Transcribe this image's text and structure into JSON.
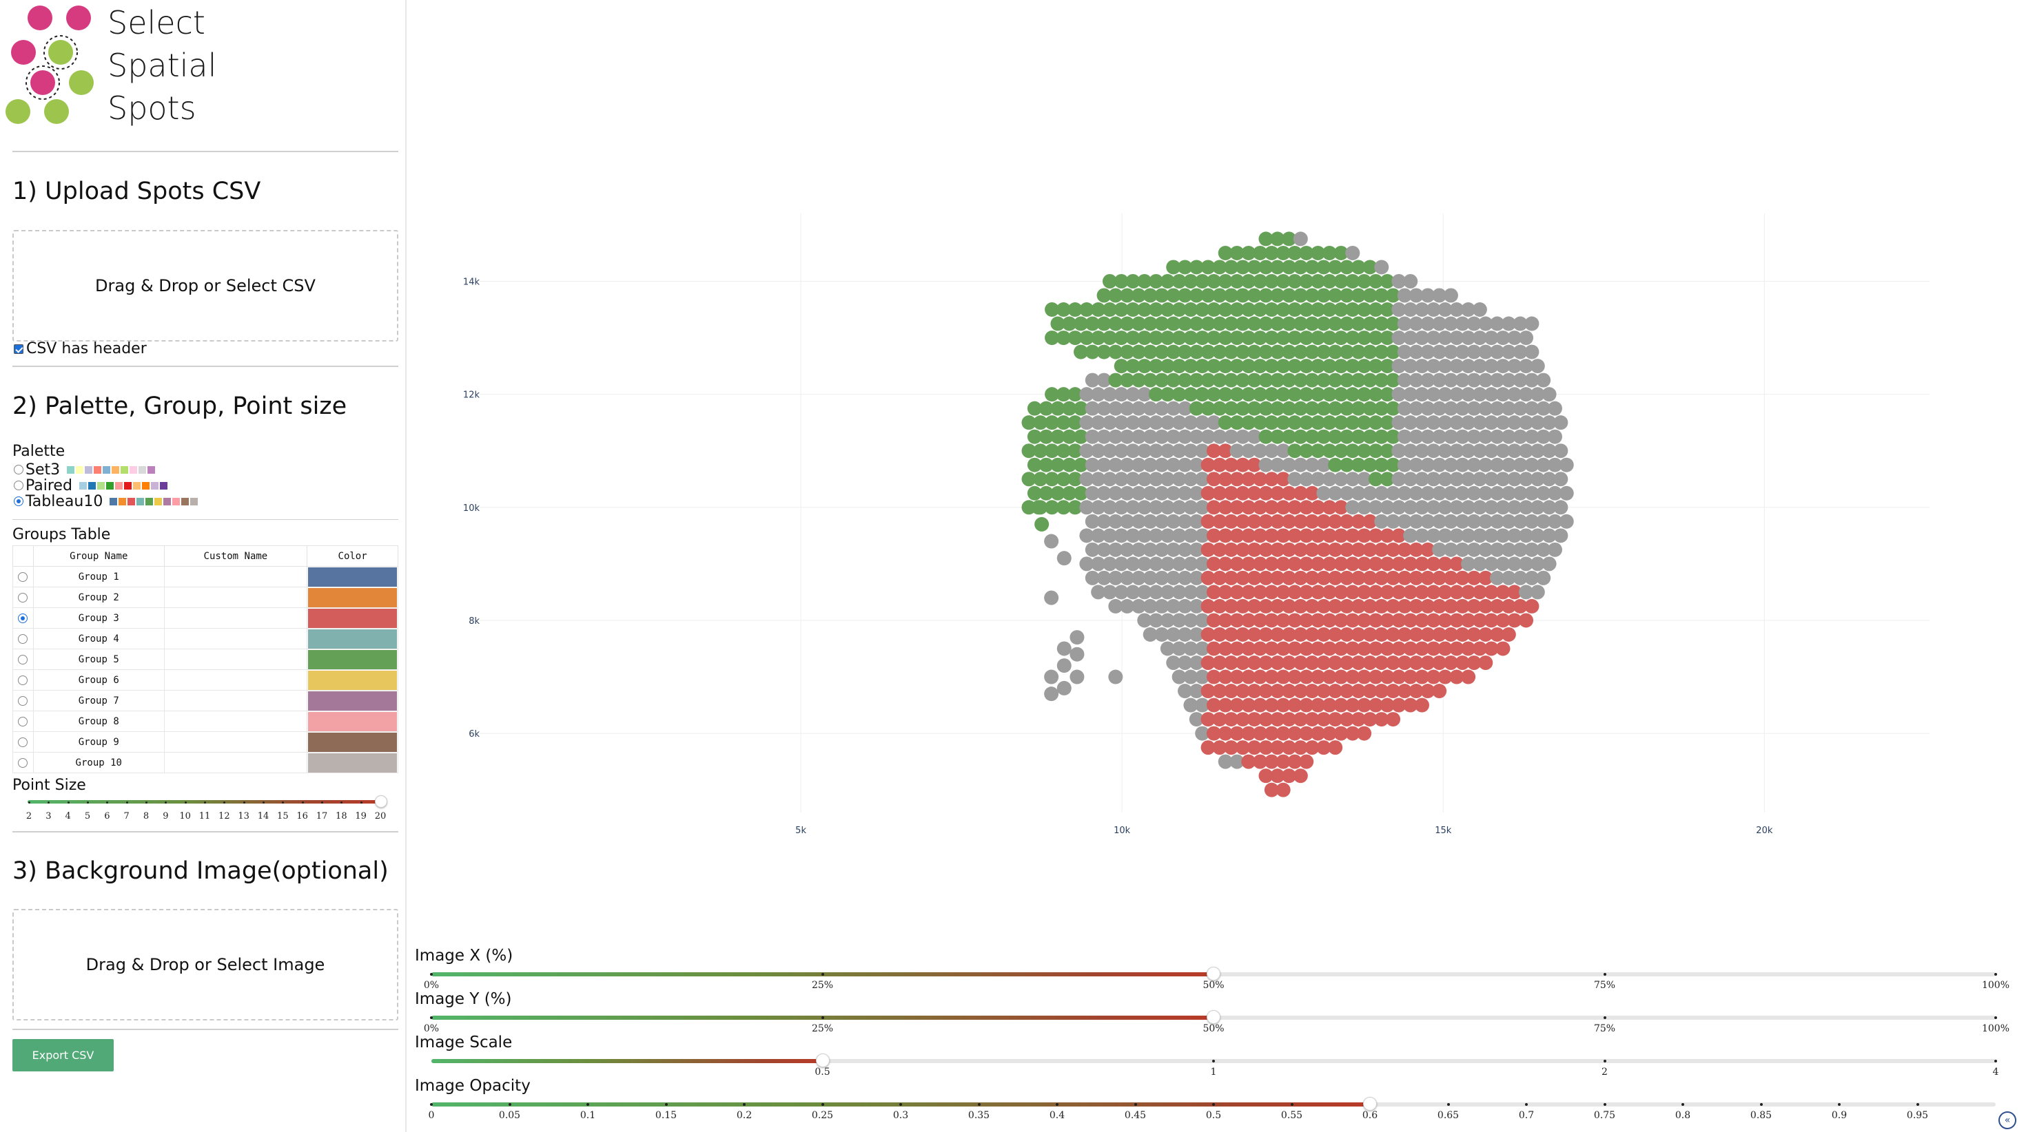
{
  "app": {
    "title_lines": [
      "Select",
      "Spatial",
      "Spots"
    ]
  },
  "section1": {
    "heading": "1) Upload Spots CSV",
    "dropzone_label": "Drag & Drop or Select CSV",
    "header_checkbox_label": "CSV has header",
    "header_checked": true
  },
  "section2": {
    "heading": "2) Palette, Group, Point size",
    "palette_label": "Palette",
    "palettes": [
      {
        "name": "Set3",
        "selected": false,
        "colors": [
          "#8dd3c7",
          "#ffffb3",
          "#bebada",
          "#fb8072",
          "#80b1d3",
          "#fdb462",
          "#b3de69",
          "#fccde5",
          "#d9d9d9",
          "#bc80bd"
        ]
      },
      {
        "name": "Paired",
        "selected": false,
        "colors": [
          "#a6cee3",
          "#1f78b4",
          "#b2df8a",
          "#33a02c",
          "#fb9a99",
          "#e31a1c",
          "#fdbf6f",
          "#ff7f00",
          "#cab2d6",
          "#6a3d9a"
        ]
      },
      {
        "name": "Tableau10",
        "selected": true,
        "colors": [
          "#4e79a7",
          "#f28e2c",
          "#e15759",
          "#76b7b2",
          "#59a14f",
          "#edc949",
          "#af7aa1",
          "#ff9da7",
          "#9c755f",
          "#bab0ab"
        ]
      }
    ],
    "groups_table_label": "Groups Table",
    "table_headers": [
      "Group Name",
      "Custom Name",
      "Color"
    ],
    "groups": [
      {
        "name": "Group 1",
        "custom": "",
        "color": "#57739f",
        "selected": false
      },
      {
        "name": "Group 2",
        "custom": "",
        "color": "#e2873a",
        "selected": false
      },
      {
        "name": "Group 3",
        "custom": "",
        "color": "#d35d5b",
        "selected": true
      },
      {
        "name": "Group 4",
        "custom": "",
        "color": "#80b1ae",
        "selected": false
      },
      {
        "name": "Group 5",
        "custom": "",
        "color": "#65a057",
        "selected": false
      },
      {
        "name": "Group 6",
        "custom": "",
        "color": "#e7c65e",
        "selected": false
      },
      {
        "name": "Group 7",
        "custom": "",
        "color": "#a47899",
        "selected": false
      },
      {
        "name": "Group 8",
        "custom": "",
        "color": "#f2a1a4",
        "selected": false
      },
      {
        "name": "Group 9",
        "custom": "",
        "color": "#8d6b56",
        "selected": false
      },
      {
        "name": "Group 10",
        "custom": "",
        "color": "#b9b1ad",
        "selected": false
      }
    ],
    "point_size_label": "Point Size",
    "point_size_ticks": [
      "2",
      "3",
      "4",
      "5",
      "6",
      "7",
      "8",
      "9",
      "10",
      "11",
      "12",
      "13",
      "14",
      "15",
      "16",
      "17",
      "18",
      "19",
      "20"
    ],
    "point_size_value": 20
  },
  "section3": {
    "heading": "3) Background Image(optional)",
    "dropzone_label": "Drag & Drop or Select Image"
  },
  "export_button": "Export CSV",
  "chart_data": {
    "type": "scatter",
    "x_tick_labels": [
      "5k",
      "10k",
      "15k",
      "20k"
    ],
    "x_ticks": [
      5000,
      10000,
      15000,
      20000
    ],
    "y_tick_labels": [
      "6k",
      "8k",
      "10k",
      "12k",
      "14k"
    ],
    "y_ticks": [
      6000,
      8000,
      10000,
      12000,
      14000
    ],
    "xlim": [
      0,
      23000
    ],
    "ylim": [
      4600,
      15200
    ],
    "grid": true,
    "grid_color": "#eeeeee",
    "point_colors": {
      "unassigned": "#9c9c9c",
      "Group 3": "#d35d5b",
      "Group 5": "#65a057"
    },
    "spot_spacing": 180,
    "tissue_outline_row_extents": [
      [
        14.75,
        12.2,
        12.9
      ],
      [
        14.5,
        11.5,
        13.7
      ],
      [
        14.25,
        10.7,
        14.1
      ],
      [
        14.0,
        9.8,
        14.6
      ],
      [
        13.75,
        9.6,
        15.2
      ],
      [
        13.5,
        8.9,
        15.6
      ],
      [
        13.25,
        8.9,
        16.4
      ],
      [
        13.0,
        8.9,
        16.4
      ],
      [
        12.75,
        9.3,
        16.5
      ],
      [
        12.5,
        9.9,
        16.6
      ],
      [
        12.25,
        9.4,
        16.7
      ],
      [
        12.0,
        8.8,
        16.8
      ],
      [
        11.75,
        8.5,
        16.9
      ],
      [
        11.5,
        8.5,
        16.9
      ],
      [
        11.25,
        8.5,
        16.9
      ],
      [
        11.0,
        8.5,
        17.0
      ],
      [
        10.75,
        8.5,
        17.0
      ],
      [
        10.5,
        8.5,
        17.0
      ],
      [
        10.25,
        8.5,
        17.0
      ],
      [
        10.0,
        8.5,
        17.0
      ],
      [
        9.75,
        9.4,
        17.0
      ],
      [
        9.5,
        9.4,
        16.9
      ],
      [
        9.25,
        9.4,
        16.9
      ],
      [
        9.0,
        9.4,
        16.8
      ],
      [
        8.75,
        9.4,
        16.7
      ],
      [
        8.5,
        9.6,
        16.6
      ],
      [
        8.25,
        9.8,
        16.5
      ],
      [
        8.0,
        10.2,
        16.3
      ],
      [
        7.75,
        10.4,
        16.1
      ],
      [
        7.5,
        10.6,
        16.0
      ],
      [
        7.25,
        10.7,
        15.7
      ],
      [
        7.0,
        10.8,
        15.4
      ],
      [
        6.75,
        10.9,
        15.1
      ],
      [
        6.5,
        11.0,
        14.7
      ],
      [
        6.25,
        11.0,
        14.3
      ],
      [
        6.0,
        11.2,
        13.9
      ],
      [
        5.75,
        11.2,
        13.4
      ],
      [
        5.5,
        11.6,
        12.9
      ],
      [
        5.25,
        12.1,
        12.8
      ],
      [
        5.0,
        12.2,
        12.6
      ]
    ],
    "green_region": "upper-left",
    "red_region": "lower-right",
    "gray_region": "band between green and red, and tissue boundary"
  },
  "bottom_sliders": [
    {
      "label": "Image X (%)",
      "value": 50,
      "min": 0,
      "max": 100,
      "ticks": [
        "0%",
        "25%",
        "50%",
        "75%",
        "100%"
      ],
      "tick_values": [
        0,
        25,
        50,
        75,
        100
      ]
    },
    {
      "label": "Image Y (%)",
      "value": 50,
      "min": 0,
      "max": 100,
      "ticks": [
        "0%",
        "25%",
        "50%",
        "75%",
        "100%"
      ],
      "tick_values": [
        0,
        25,
        50,
        75,
        100
      ]
    },
    {
      "label": "Image Scale",
      "value": 0.5,
      "min": 0,
      "max": 4,
      "ticks": [
        "0.5",
        "1",
        "2",
        "4"
      ],
      "tick_values": [
        0.5,
        1,
        2,
        4
      ],
      "log": true
    },
    {
      "label": "Image Opacity",
      "value": 0.6,
      "min": 0,
      "max": 1,
      "ticks": [
        "0",
        "0.05",
        "0.1",
        "0.15",
        "0.2",
        "0.25",
        "0.3",
        "0.35",
        "0.4",
        "0.45",
        "0.5",
        "0.55",
        "0.6",
        "0.65",
        "0.7",
        "0.75",
        "0.8",
        "0.85",
        "0.9",
        "0.95"
      ],
      "tick_values": [
        0,
        0.05,
        0.1,
        0.15,
        0.2,
        0.25,
        0.3,
        0.35,
        0.4,
        0.45,
        0.5,
        0.55,
        0.6,
        0.65,
        0.7,
        0.75,
        0.8,
        0.85,
        0.9,
        0.95
      ]
    }
  ],
  "icons": {
    "logo": "logo-dots-icon",
    "collapse": "double-chevron-left-icon"
  }
}
